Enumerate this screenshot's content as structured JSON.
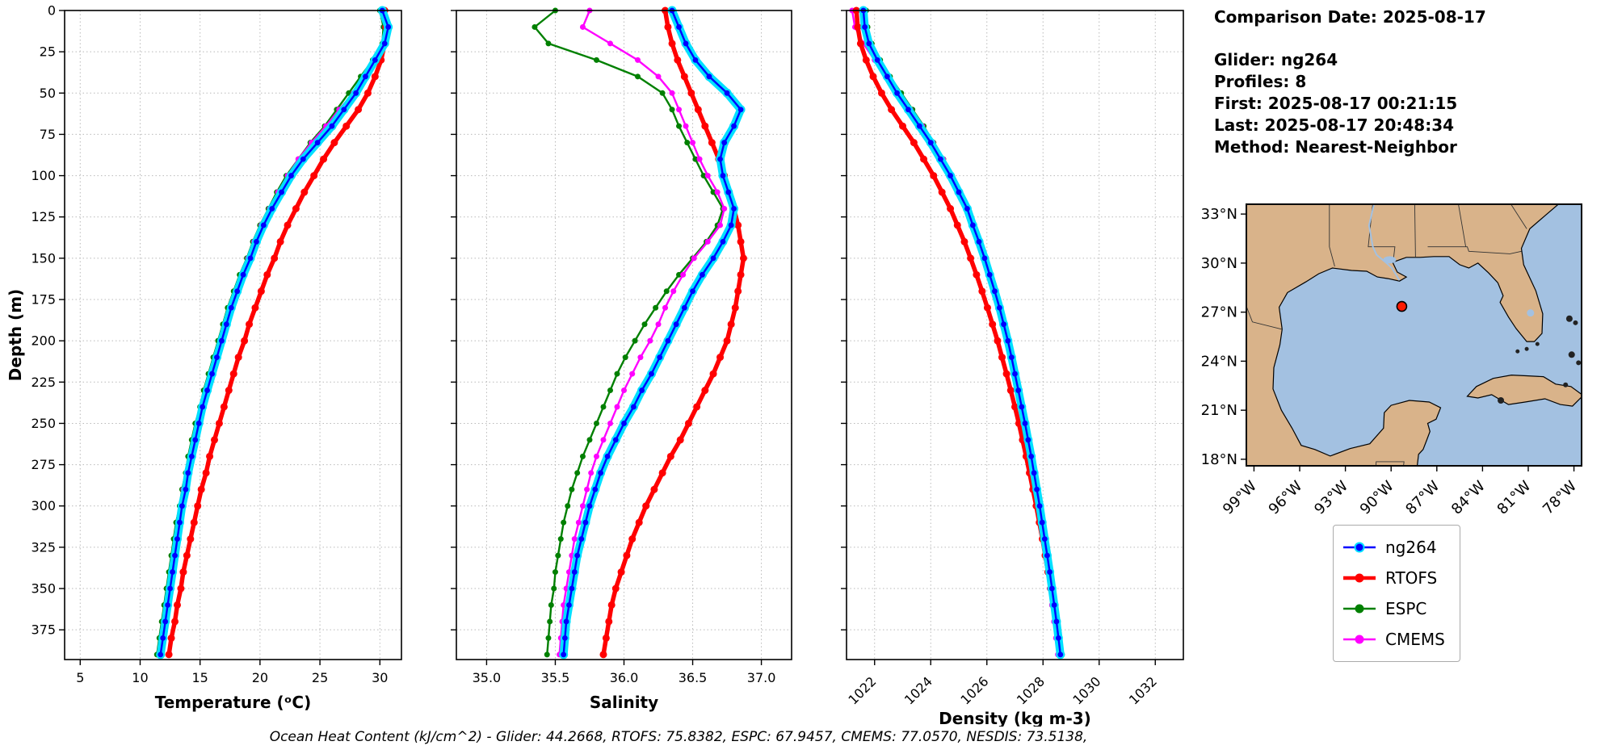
{
  "info": {
    "comparison_date": "Comparison Date: 2025-08-17",
    "glider": "Glider: ng264",
    "profiles": "Profiles: 8",
    "first": "First: 2025-08-17 00:21:15",
    "last": "Last: 2025-08-17 20:48:34",
    "method": "Method: Nearest-Neighbor"
  },
  "legend": {
    "items": [
      {
        "label": "ng264",
        "color": "#0000ff",
        "edge": "#00e0ff",
        "lw": 2.5
      },
      {
        "label": "RTOFS",
        "color": "#ff0000",
        "lw": 4.5
      },
      {
        "label": "ESPC",
        "color": "#008000",
        "lw": 2.5
      },
      {
        "label": "CMEMS",
        "color": "#ff00ff",
        "lw": 2.5
      }
    ]
  },
  "footer": {
    "ohc_text": "Ocean Heat Content (kJ/cm^2) - Glider: 44.2668,  RTOFS: 75.8382,  ESPC: 67.9457,  CMEMS: 77.0570,  NESDIS: 73.5138,"
  },
  "map": {
    "land_color": "#d9b38a",
    "ocean_color": "#a3c1e1",
    "marker": {
      "lat": 27.35,
      "lon": -89.3,
      "color": "#ff1a00"
    },
    "lat_ticks": [
      {
        "v": 33,
        "label": "33°N"
      },
      {
        "v": 30,
        "label": "30°N"
      },
      {
        "v": 27,
        "label": "27°N"
      },
      {
        "v": 24,
        "label": "24°N"
      },
      {
        "v": 21,
        "label": "21°N"
      },
      {
        "v": 18,
        "label": "18°N"
      }
    ],
    "lon_ticks": [
      {
        "v": -99,
        "label": "99°W"
      },
      {
        "v": -96,
        "label": "96°W"
      },
      {
        "v": -93,
        "label": "93°W"
      },
      {
        "v": -90,
        "label": "90°W"
      },
      {
        "v": -87,
        "label": "87°W"
      },
      {
        "v": -84,
        "label": "84°W"
      },
      {
        "v": -81,
        "label": "81°W"
      },
      {
        "v": -78,
        "label": "78°W"
      }
    ]
  },
  "chart_data": {
    "type": "line",
    "note": "Vertical ocean profiles; y axis is depth in meters increasing downward; four series compared per panel.",
    "ylabel": "Depth (m)",
    "ylim": [
      0,
      393
    ],
    "yticks": [
      0,
      25,
      50,
      75,
      100,
      125,
      150,
      175,
      200,
      225,
      250,
      275,
      300,
      325,
      350,
      375
    ],
    "grid": true,
    "legend_position": "right-outside",
    "depths": [
      0,
      10,
      20,
      30,
      40,
      50,
      60,
      70,
      80,
      90,
      100,
      110,
      120,
      130,
      140,
      150,
      160,
      170,
      180,
      190,
      200,
      210,
      220,
      230,
      240,
      250,
      260,
      270,
      280,
      290,
      300,
      310,
      320,
      330,
      340,
      350,
      360,
      370,
      380,
      390
    ],
    "series_styles": {
      "ng264": {
        "color": "#0000ff",
        "halo": "#00e0ff"
      },
      "RTOFS": {
        "color": "#ff0000"
      },
      "ESPC": {
        "color": "#008000"
      },
      "CMEMS": {
        "color": "#ff00ff"
      }
    },
    "panels": [
      {
        "xlabel": "Temperature (ᵒC)",
        "xlim": [
          3.7,
          31.8
        ],
        "xticks": [
          5,
          10,
          15,
          20,
          25,
          30
        ],
        "xticklabels": [
          "5",
          "10",
          "15",
          "20",
          "25",
          "30"
        ],
        "rotate_xticklabels": false,
        "series": {
          "ng264": [
            30.2,
            30.7,
            30.4,
            29.6,
            28.8,
            28.0,
            27.0,
            26.0,
            24.8,
            23.6,
            22.6,
            21.8,
            21.0,
            20.3,
            19.7,
            19.2,
            18.6,
            18.1,
            17.6,
            17.2,
            16.8,
            16.4,
            16.0,
            15.6,
            15.2,
            14.9,
            14.6,
            14.3,
            14.0,
            13.8,
            13.5,
            13.3,
            13.1,
            12.9,
            12.7,
            12.5,
            12.3,
            12.1,
            11.9,
            11.7
          ],
          "RTOFS": [
            30.4,
            30.5,
            30.4,
            30.1,
            29.6,
            29.0,
            28.2,
            27.2,
            26.2,
            25.3,
            24.5,
            23.7,
            23.0,
            22.3,
            21.7,
            21.2,
            20.6,
            20.1,
            19.6,
            19.1,
            18.7,
            18.2,
            17.8,
            17.4,
            17.0,
            16.6,
            16.2,
            15.8,
            15.5,
            15.1,
            14.8,
            14.5,
            14.2,
            13.9,
            13.6,
            13.4,
            13.1,
            12.9,
            12.6,
            12.4
          ],
          "ESPC": [
            30.0,
            30.3,
            30.2,
            29.4,
            28.4,
            27.4,
            26.4,
            25.4,
            24.2,
            23.2,
            22.2,
            21.4,
            20.7,
            20.0,
            19.4,
            18.9,
            18.3,
            17.8,
            17.3,
            16.9,
            16.5,
            16.1,
            15.7,
            15.3,
            15.0,
            14.6,
            14.3,
            14.0,
            13.8,
            13.5,
            13.3,
            13.0,
            12.8,
            12.6,
            12.4,
            12.2,
            12.0,
            11.8,
            11.6,
            11.4
          ],
          "CMEMS": [
            30.4,
            30.8,
            30.5,
            29.8,
            28.9,
            27.8,
            26.6,
            25.5,
            24.3,
            23.2,
            22.3,
            21.5,
            20.8,
            20.1,
            19.5,
            19.0,
            18.5,
            18.0,
            17.5,
            17.1,
            16.7,
            16.3,
            15.9,
            15.5,
            15.1,
            14.8,
            14.5,
            14.2,
            13.9,
            13.6,
            13.4,
            13.2,
            13.0,
            12.8,
            12.6,
            12.4,
            12.2,
            12.0,
            11.8,
            11.6
          ]
        }
      },
      {
        "xlabel": "Salinity",
        "xlim": [
          34.78,
          37.22
        ],
        "xticks": [
          35.0,
          35.5,
          36.0,
          36.5,
          37.0
        ],
        "xticklabels": [
          "35.0",
          "35.5",
          "36.0",
          "36.5",
          "37.0"
        ],
        "rotate_xticklabels": false,
        "series": {
          "ng264": [
            36.35,
            36.4,
            36.45,
            36.52,
            36.62,
            36.75,
            36.85,
            36.8,
            36.73,
            36.7,
            36.72,
            36.76,
            36.8,
            36.78,
            36.72,
            36.65,
            36.57,
            36.5,
            36.44,
            36.38,
            36.32,
            36.26,
            36.2,
            36.13,
            36.07,
            36.0,
            35.94,
            35.88,
            35.83,
            35.79,
            35.75,
            35.72,
            35.69,
            35.66,
            35.64,
            35.62,
            35.6,
            35.58,
            35.57,
            35.56
          ],
          "RTOFS": [
            36.3,
            36.32,
            36.35,
            36.39,
            36.44,
            36.49,
            36.54,
            36.59,
            36.64,
            36.69,
            36.73,
            36.76,
            36.8,
            36.83,
            36.85,
            36.87,
            36.85,
            36.83,
            36.81,
            36.78,
            36.75,
            36.7,
            36.65,
            36.59,
            36.53,
            36.47,
            36.41,
            36.34,
            36.28,
            36.22,
            36.16,
            36.11,
            36.06,
            36.02,
            35.98,
            35.94,
            35.91,
            35.89,
            35.87,
            35.85
          ],
          "ESPC": [
            35.5,
            35.35,
            35.45,
            35.8,
            36.1,
            36.28,
            36.35,
            36.4,
            36.46,
            36.52,
            36.58,
            36.65,
            36.72,
            36.68,
            36.6,
            36.5,
            36.4,
            36.31,
            36.23,
            36.15,
            36.08,
            36.01,
            35.95,
            35.9,
            35.85,
            35.8,
            35.75,
            35.7,
            35.66,
            35.62,
            35.59,
            35.56,
            35.54,
            35.52,
            35.5,
            35.49,
            35.47,
            35.46,
            35.45,
            35.44
          ],
          "CMEMS": [
            35.75,
            35.7,
            35.9,
            36.1,
            36.25,
            36.35,
            36.4,
            36.45,
            36.5,
            36.55,
            36.61,
            36.68,
            36.73,
            36.7,
            36.61,
            36.51,
            36.43,
            36.36,
            36.3,
            36.25,
            36.19,
            36.12,
            36.06,
            36.0,
            35.95,
            35.9,
            35.85,
            35.8,
            35.76,
            35.73,
            35.7,
            35.67,
            35.64,
            35.62,
            35.6,
            35.58,
            35.56,
            35.55,
            35.54,
            35.53
          ]
        }
      },
      {
        "xlabel": "Density (kg m-3)",
        "xlim": [
          1021,
          1033
        ],
        "xticks": [
          1022,
          1024,
          1026,
          1028,
          1030,
          1032
        ],
        "xticklabels": [
          "1022",
          "1024",
          "1026",
          "1028",
          "1030",
          "1032"
        ],
        "rotate_xticklabels": true,
        "series": {
          "ng264": [
            1021.6,
            1021.65,
            1021.8,
            1022.1,
            1022.45,
            1022.8,
            1023.2,
            1023.6,
            1024.0,
            1024.35,
            1024.7,
            1025.0,
            1025.3,
            1025.5,
            1025.72,
            1025.92,
            1026.1,
            1026.28,
            1026.45,
            1026.6,
            1026.75,
            1026.88,
            1027.0,
            1027.12,
            1027.24,
            1027.36,
            1027.47,
            1027.58,
            1027.68,
            1027.78,
            1027.88,
            1027.97,
            1028.06,
            1028.15,
            1028.24,
            1028.32,
            1028.4,
            1028.48,
            1028.55,
            1028.62
          ],
          "RTOFS": [
            1021.35,
            1021.4,
            1021.5,
            1021.7,
            1021.95,
            1022.25,
            1022.6,
            1023.0,
            1023.4,
            1023.75,
            1024.1,
            1024.4,
            1024.7,
            1024.95,
            1025.2,
            1025.42,
            1025.63,
            1025.83,
            1026.02,
            1026.2,
            1026.38,
            1026.54,
            1026.7,
            1026.85,
            1027.0,
            1027.14,
            1027.27,
            1027.4,
            1027.52,
            1027.64,
            1027.76,
            1027.87,
            1027.98,
            1028.08,
            1028.18,
            1028.28,
            1028.38,
            1028.47,
            1028.56,
            1028.65
          ],
          "ESPC": [
            1021.7,
            1021.75,
            1021.9,
            1022.2,
            1022.55,
            1022.95,
            1023.35,
            1023.75,
            1024.1,
            1024.45,
            1024.75,
            1025.05,
            1025.32,
            1025.55,
            1025.76,
            1025.96,
            1026.14,
            1026.3,
            1026.46,
            1026.6,
            1026.73,
            1026.86,
            1026.98,
            1027.1,
            1027.21,
            1027.32,
            1027.42,
            1027.52,
            1027.62,
            1027.72,
            1027.81,
            1027.9,
            1027.99,
            1028.08,
            1028.16,
            1028.24,
            1028.32,
            1028.4,
            1028.47,
            1028.54
          ],
          "CMEMS": [
            1021.2,
            1021.3,
            1021.6,
            1022.0,
            1022.42,
            1022.85,
            1023.28,
            1023.7,
            1024.08,
            1024.44,
            1024.76,
            1025.05,
            1025.3,
            1025.53,
            1025.74,
            1025.94,
            1026.12,
            1026.29,
            1026.45,
            1026.6,
            1026.74,
            1026.87,
            1027.0,
            1027.12,
            1027.23,
            1027.34,
            1027.44,
            1027.54,
            1027.64,
            1027.73,
            1027.82,
            1027.91,
            1028.0,
            1028.08,
            1028.16,
            1028.24,
            1028.32,
            1028.39,
            1028.46,
            1028.53
          ]
        }
      }
    ]
  }
}
